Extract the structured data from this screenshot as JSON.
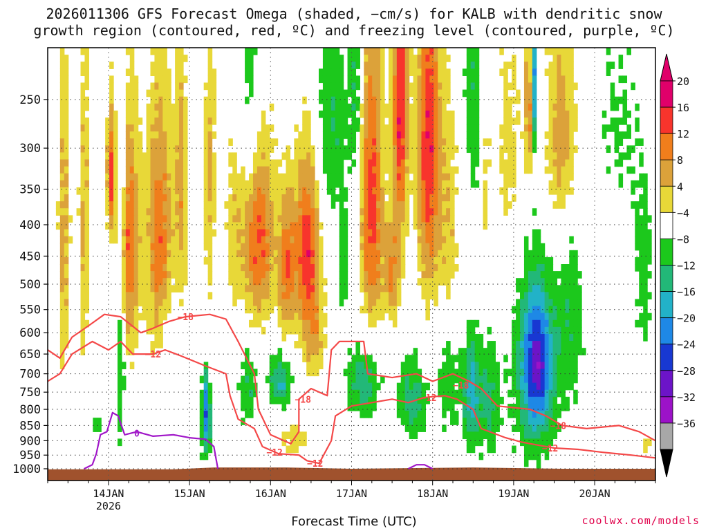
{
  "chart_data": {
    "type": "heatmap",
    "title_line1": "2026011306 GFS Forecast Omega (shaded, −cm/s) for KALB with dendritic snow",
    "title_line2": "growth region (contoured, red, ºC) and freezing level (contoured, purple, ºC)",
    "xlabel": "Forecast Time (UTC)",
    "x_range_days": [
      13.25,
      20.75
    ],
    "x_ticks": [
      {
        "day": 14,
        "label": "14JAN",
        "sublabel": "2026"
      },
      {
        "day": 15,
        "label": "15JAN",
        "sublabel": ""
      },
      {
        "day": 16,
        "label": "16JAN",
        "sublabel": ""
      },
      {
        "day": 17,
        "label": "17JAN",
        "sublabel": ""
      },
      {
        "day": 18,
        "label": "18JAN",
        "sublabel": ""
      },
      {
        "day": 19,
        "label": "19JAN",
        "sublabel": ""
      },
      {
        "day": 20,
        "label": "20JAN",
        "sublabel": ""
      }
    ],
    "y_ticks": [
      250,
      300,
      350,
      400,
      450,
      500,
      550,
      600,
      650,
      700,
      750,
      800,
      850,
      900,
      950,
      1000
    ],
    "y_range_hpa": [
      200,
      1020
    ],
    "colorbar_levels": [
      "20",
      "16",
      "12",
      "8",
      "4",
      "−4",
      "−8",
      "−12",
      "−16",
      "−20",
      "−24",
      "−28",
      "−32",
      "−36"
    ],
    "colorbar_colors": [
      "#e0006a",
      "#f8342c",
      "#f07e1c",
      "#dca23a",
      "#e8d838",
      "#ffffff",
      "#1cc81c",
      "#22b878",
      "#22b2c8",
      "#1e88e6",
      "#1838d2",
      "#6c14c8",
      "#9c12c8",
      "#a8a8a8"
    ],
    "omega_features": [
      {
        "day": 13.45,
        "p": 420,
        "w": 0.07,
        "h": 260,
        "v": 10
      },
      {
        "day": 13.7,
        "p": 400,
        "w": 0.07,
        "h": 250,
        "v": 9
      },
      {
        "day": 14.03,
        "p": 330,
        "w": 0.05,
        "h": 80,
        "v": 18
      },
      {
        "day": 14.25,
        "p": 430,
        "w": 0.13,
        "h": 200,
        "v": 16
      },
      {
        "day": 14.63,
        "p": 420,
        "w": 0.16,
        "h": 210,
        "v": 15
      },
      {
        "day": 14.9,
        "p": 350,
        "w": 0.08,
        "h": 170,
        "v": 10
      },
      {
        "day": 15.25,
        "p": 330,
        "w": 0.07,
        "h": 200,
        "v": 9
      },
      {
        "day": 15.55,
        "p": 400,
        "w": 0.1,
        "h": 160,
        "v": 6
      },
      {
        "day": 15.85,
        "p": 420,
        "w": 0.2,
        "h": 150,
        "v": 17
      },
      {
        "day": 16.2,
        "p": 470,
        "w": 0.1,
        "h": 130,
        "v": 14
      },
      {
        "day": 16.45,
        "p": 440,
        "w": 0.16,
        "h": 150,
        "v": 19
      },
      {
        "day": 16.3,
        "p": 900,
        "w": 0.17,
        "h": 60,
        "v": 7
      },
      {
        "day": 16.55,
        "p": 620,
        "w": 0.14,
        "h": 100,
        "v": 8
      },
      {
        "day": 17.25,
        "p": 370,
        "w": 0.14,
        "h": 220,
        "v": 18
      },
      {
        "day": 17.6,
        "p": 260,
        "w": 0.1,
        "h": 150,
        "v": 20
      },
      {
        "day": 17.95,
        "p": 300,
        "w": 0.14,
        "h": 200,
        "v": 20
      },
      {
        "day": 17.5,
        "p": 480,
        "w": 0.1,
        "h": 90,
        "v": 12
      },
      {
        "day": 18.2,
        "p": 430,
        "w": 0.12,
        "h": 200,
        "v": 8
      },
      {
        "day": 18.65,
        "p": 340,
        "w": 0.06,
        "h": 120,
        "v": 6
      },
      {
        "day": 18.95,
        "p": 300,
        "w": 0.16,
        "h": 150,
        "v": 6
      },
      {
        "day": 19.2,
        "p": 260,
        "w": 0.06,
        "h": 80,
        "v": 16
      },
      {
        "day": 19.6,
        "p": 290,
        "w": 0.2,
        "h": 130,
        "v": 12
      },
      {
        "day": 20.2,
        "p": 420,
        "w": 0.25,
        "h": 160,
        "v": 5
      },
      {
        "day": 20.65,
        "p": 900,
        "w": 0.07,
        "h": 70,
        "v": 6
      },
      {
        "day": 13.85,
        "p": 850,
        "w": 0.1,
        "h": 40,
        "v": -6
      },
      {
        "day": 14.15,
        "p": 640,
        "w": 0.05,
        "h": 260,
        "v": -10
      },
      {
        "day": 14.17,
        "p": 280,
        "w": 0.05,
        "h": 120,
        "v": -8
      },
      {
        "day": 14.72,
        "p": 620,
        "w": 0.08,
        "h": 90,
        "v": -6
      },
      {
        "day": 15.2,
        "p": 820,
        "w": 0.07,
        "h": 150,
        "v": -10
      },
      {
        "day": 15.22,
        "p": 820,
        "w": 0.03,
        "h": 120,
        "v": -14
      },
      {
        "day": 15.72,
        "p": 730,
        "w": 0.12,
        "h": 120,
        "v": -8
      },
      {
        "day": 15.75,
        "p": 230,
        "w": 0.13,
        "h": 130,
        "v": -8
      },
      {
        "day": 16.1,
        "p": 700,
        "w": 0.16,
        "h": 70,
        "v": -9
      },
      {
        "day": 16.15,
        "p": 750,
        "w": 0.12,
        "h": 50,
        "v": -6
      },
      {
        "day": 16.75,
        "p": 280,
        "w": 0.2,
        "h": 120,
        "v": -8
      },
      {
        "day": 17.05,
        "p": 230,
        "w": 0.08,
        "h": 120,
        "v": -8
      },
      {
        "day": 17.15,
        "p": 720,
        "w": 0.22,
        "h": 110,
        "v": -11
      },
      {
        "day": 16.9,
        "p": 470,
        "w": 0.06,
        "h": 90,
        "v": -8
      },
      {
        "day": 17.75,
        "p": 770,
        "w": 0.18,
        "h": 120,
        "v": -10
      },
      {
        "day": 18.2,
        "p": 700,
        "w": 0.15,
        "h": 170,
        "v": -8
      },
      {
        "day": 18.48,
        "p": 760,
        "w": 0.1,
        "h": 160,
        "v": -14
      },
      {
        "day": 18.7,
        "p": 780,
        "w": 0.14,
        "h": 180,
        "v": -9
      },
      {
        "day": 18.5,
        "p": 250,
        "w": 0.12,
        "h": 110,
        "v": -8
      },
      {
        "day": 19.25,
        "p": 700,
        "w": 0.26,
        "h": 260,
        "v": -13
      },
      {
        "day": 19.3,
        "p": 670,
        "w": 0.16,
        "h": 150,
        "v": -15
      },
      {
        "day": 19.25,
        "p": 230,
        "w": 0.04,
        "h": 80,
        "v": -22
      },
      {
        "day": 19.7,
        "p": 550,
        "w": 0.2,
        "h": 250,
        "v": -7
      },
      {
        "day": 20.25,
        "p": 320,
        "w": 0.3,
        "h": 160,
        "v": -7
      },
      {
        "day": 20.6,
        "p": 500,
        "w": 0.12,
        "h": 180,
        "v": -6
      }
    ],
    "contours": [
      {
        "label": "−18",
        "color": "#f44848",
        "points": [
          [
            13.25,
            640
          ],
          [
            13.4,
            660
          ],
          [
            13.55,
            610
          ],
          [
            13.75,
            585
          ],
          [
            13.95,
            560
          ],
          [
            14.15,
            565
          ],
          [
            14.4,
            600
          ],
          [
            14.55,
            590
          ],
          [
            14.75,
            575
          ],
          [
            14.95,
            565
          ],
          [
            15.25,
            560
          ],
          [
            15.45,
            570
          ],
          [
            15.6,
            620
          ],
          [
            15.8,
            700
          ],
          [
            15.85,
            800
          ],
          [
            16,
            880
          ],
          [
            16.25,
            910
          ],
          [
            16.35,
            870
          ],
          [
            16.35,
            770
          ],
          [
            16.5,
            740
          ],
          [
            16.7,
            760
          ],
          [
            16.75,
            640
          ],
          [
            16.85,
            620
          ],
          [
            17.15,
            620
          ],
          [
            17.2,
            700
          ],
          [
            17.5,
            710
          ],
          [
            17.8,
            700
          ],
          [
            18,
            720
          ],
          [
            18.25,
            700
          ],
          [
            18.45,
            720
          ],
          [
            18.6,
            740
          ],
          [
            18.8,
            790
          ],
          [
            19.2,
            800
          ],
          [
            19.4,
            820
          ],
          [
            19.6,
            850
          ],
          [
            19.9,
            860
          ],
          [
            20.3,
            850
          ],
          [
            20.55,
            870
          ],
          [
            20.75,
            900
          ]
        ],
        "labels": [
          [
            14.95,
            565
          ],
          [
            16.4,
            770
          ],
          [
            18.35,
            730
          ],
          [
            19.55,
            850
          ]
        ]
      },
      {
        "label": "−12",
        "color": "#f44848",
        "points": [
          [
            13.25,
            720
          ],
          [
            13.4,
            700
          ],
          [
            13.55,
            650
          ],
          [
            13.8,
            620
          ],
          [
            14.0,
            640
          ],
          [
            14.15,
            620
          ],
          [
            14.3,
            650
          ],
          [
            14.55,
            650
          ],
          [
            14.7,
            640
          ],
          [
            14.9,
            655
          ],
          [
            15.2,
            680
          ],
          [
            15.45,
            700
          ],
          [
            15.5,
            760
          ],
          [
            15.6,
            830
          ],
          [
            15.8,
            860
          ],
          [
            15.9,
            920
          ],
          [
            16.1,
            945
          ],
          [
            16.35,
            950
          ],
          [
            16.45,
            970
          ],
          [
            16.6,
            980
          ],
          [
            16.75,
            900
          ],
          [
            16.8,
            820
          ],
          [
            17.0,
            790
          ],
          [
            17.25,
            780
          ],
          [
            17.5,
            770
          ],
          [
            17.7,
            780
          ],
          [
            17.9,
            765
          ],
          [
            18.15,
            760
          ],
          [
            18.3,
            770
          ],
          [
            18.5,
            800
          ],
          [
            18.6,
            860
          ],
          [
            18.9,
            890
          ],
          [
            19.1,
            905
          ],
          [
            19.3,
            915
          ],
          [
            19.5,
            925
          ],
          [
            19.8,
            930
          ],
          [
            20.1,
            940
          ],
          [
            20.45,
            950
          ],
          [
            20.75,
            960
          ]
        ],
        "labels": [
          [
            14.55,
            650
          ],
          [
            16.05,
            940
          ],
          [
            16.55,
            980
          ],
          [
            17.95,
            765
          ],
          [
            19.45,
            925
          ]
        ]
      },
      {
        "label": "0",
        "color": "#a016c8",
        "points": [
          [
            13.7,
            1000
          ],
          [
            13.8,
            985
          ],
          [
            13.85,
            945
          ],
          [
            13.9,
            880
          ],
          [
            13.98,
            870
          ],
          [
            14.05,
            810
          ],
          [
            14.12,
            820
          ],
          [
            14.2,
            880
          ],
          [
            14.35,
            870
          ],
          [
            14.55,
            885
          ],
          [
            14.8,
            880
          ],
          [
            15.0,
            890
          ],
          [
            15.2,
            895
          ],
          [
            15.3,
            920
          ],
          [
            15.35,
            1000
          ]
        ],
        "labels": [
          [
            14.35,
            875
          ]
        ]
      },
      {
        "label": "",
        "color": "#a016c8",
        "points": [
          [
            17.7,
            1000
          ],
          [
            17.8,
            985
          ],
          [
            17.9,
            985
          ],
          [
            18.0,
            1000
          ]
        ],
        "labels": []
      }
    ]
  },
  "credit": "coolwx.com/models"
}
